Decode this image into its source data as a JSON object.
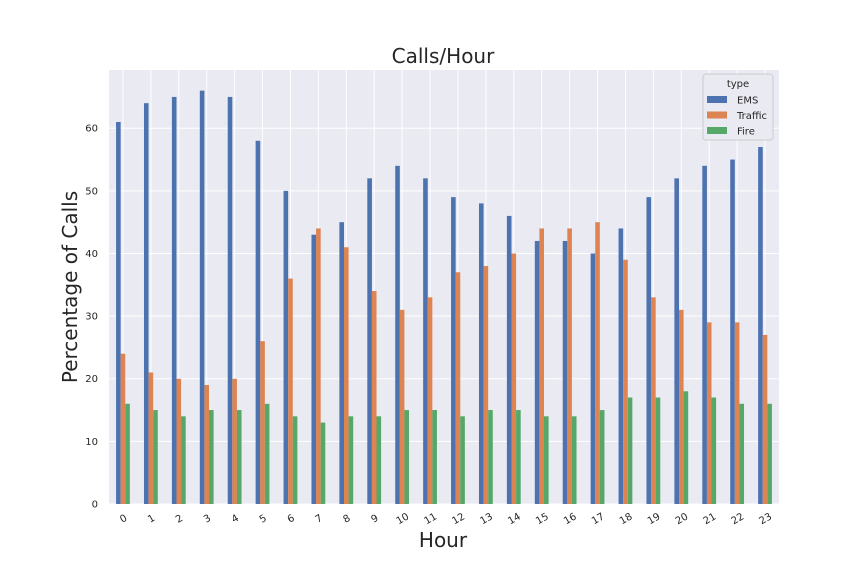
{
  "chart_data": {
    "type": "bar",
    "title": "Calls/Hour",
    "xlabel": "Hour",
    "ylabel": "Percentage of Calls",
    "categories": [
      "0",
      "1",
      "2",
      "3",
      "4",
      "5",
      "6",
      "7",
      "8",
      "9",
      "10",
      "11",
      "12",
      "13",
      "14",
      "15",
      "16",
      "17",
      "18",
      "19",
      "20",
      "21",
      "22",
      "23"
    ],
    "series": [
      {
        "name": "EMS",
        "color": "#4c72b0",
        "values": [
          61,
          64,
          65,
          66,
          65,
          58,
          50,
          43,
          45,
          52,
          54,
          52,
          49,
          48,
          46,
          42,
          42,
          40,
          44,
          49,
          52,
          54,
          55,
          57
        ]
      },
      {
        "name": "Traffic",
        "color": "#dd8452",
        "values": [
          24,
          21,
          20,
          19,
          20,
          26,
          36,
          44,
          41,
          34,
          31,
          33,
          37,
          38,
          40,
          44,
          44,
          45,
          39,
          33,
          31,
          29,
          29,
          27
        ]
      },
      {
        "name": "Fire",
        "color": "#55a868",
        "values": [
          16,
          15,
          14,
          15,
          15,
          16,
          14,
          13,
          14,
          14,
          15,
          15,
          14,
          15,
          15,
          14,
          14,
          15,
          17,
          17,
          18,
          17,
          16,
          16
        ]
      }
    ],
    "ylim": [
      0,
      69.3
    ],
    "yticks": [
      0,
      10,
      20,
      30,
      40,
      50,
      60
    ],
    "grid": true,
    "legend": {
      "title": "type",
      "placement": "top-right"
    },
    "background": "#eaeaf2",
    "grid_color": "#ffffff"
  }
}
